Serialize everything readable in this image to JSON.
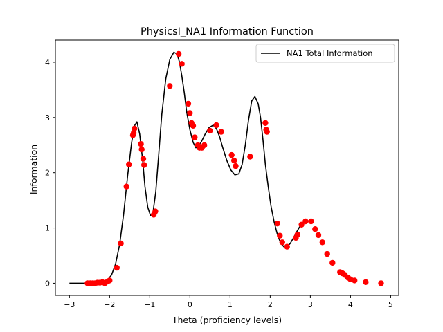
{
  "chart_data": {
    "type": "line",
    "title": "PhysicsI_NA1 Information Function",
    "xlabel": "Theta (proficiency levels)",
    "ylabel": "Information",
    "xlim": [
      -3.35,
      5.2
    ],
    "ylim": [
      -0.22,
      4.4
    ],
    "xticks": [
      -3,
      -2,
      -1,
      0,
      1,
      2,
      3,
      4,
      5
    ],
    "yticks": [
      0,
      1,
      2,
      3,
      4
    ],
    "grid": false,
    "legend_position": "upper right",
    "series": [
      {
        "name": "NA1 Total Information",
        "kind": "line",
        "color": "#000000",
        "x": [
          -3.0,
          -2.6,
          -2.4,
          -2.2,
          -2.05,
          -1.95,
          -1.85,
          -1.75,
          -1.65,
          -1.55,
          -1.45,
          -1.38,
          -1.32,
          -1.25,
          -1.18,
          -1.12,
          -1.05,
          -0.98,
          -0.92,
          -0.85,
          -0.78,
          -0.7,
          -0.6,
          -0.5,
          -0.4,
          -0.32,
          -0.26,
          -0.2,
          -0.14,
          -0.08,
          0.0,
          0.08,
          0.15,
          0.22,
          0.3,
          0.38,
          0.48,
          0.58,
          0.66,
          0.74,
          0.82,
          0.92,
          1.02,
          1.12,
          1.22,
          1.3,
          1.38,
          1.46,
          1.54,
          1.62,
          1.7,
          1.76,
          1.82,
          1.88,
          1.95,
          2.02,
          2.1,
          2.18,
          2.26,
          2.34,
          2.42,
          2.5,
          2.58,
          2.66,
          2.74,
          2.82,
          2.9,
          2.98,
          3.02
        ],
        "y": [
          0.0,
          0.0,
          0.01,
          0.02,
          0.06,
          0.15,
          0.35,
          0.7,
          1.25,
          1.95,
          2.55,
          2.85,
          2.92,
          2.7,
          2.25,
          1.75,
          1.38,
          1.22,
          1.28,
          1.65,
          2.3,
          3.05,
          3.7,
          4.05,
          4.18,
          4.15,
          4.0,
          3.75,
          3.45,
          3.1,
          2.78,
          2.55,
          2.45,
          2.48,
          2.58,
          2.7,
          2.82,
          2.86,
          2.8,
          2.65,
          2.45,
          2.22,
          2.05,
          1.96,
          1.98,
          2.15,
          2.5,
          2.95,
          3.3,
          3.38,
          3.25,
          3.0,
          2.6,
          2.15,
          1.75,
          1.4,
          1.1,
          0.88,
          0.73,
          0.66,
          0.66,
          0.72,
          0.82,
          0.93,
          1.03,
          1.1,
          1.13,
          1.12,
          1.1
        ]
      },
      {
        "kind": "scatter",
        "color": "#ff0000",
        "x": [
          -2.55,
          -2.48,
          -2.42,
          -2.36,
          -2.3,
          -2.24,
          -2.18,
          -2.12,
          -2.05,
          -2.0,
          -1.82,
          -1.72,
          -1.58,
          -1.52,
          -1.42,
          -1.4,
          -1.38,
          -1.22,
          -1.2,
          -1.16,
          -1.14,
          -0.9,
          -0.86,
          -0.5,
          -0.28,
          -0.2,
          -0.04,
          0.0,
          0.04,
          0.08,
          0.12,
          0.2,
          0.24,
          0.3,
          0.36,
          0.5,
          0.66,
          0.78,
          1.04,
          1.1,
          1.14,
          1.5,
          1.88,
          1.9,
          1.92,
          2.18,
          2.24,
          2.3,
          2.42,
          2.64,
          2.68,
          2.78,
          2.88,
          3.02,
          3.12,
          3.2,
          3.3,
          3.42,
          3.55,
          3.74,
          3.8,
          3.86,
          3.94,
          4.0,
          4.1,
          4.38,
          4.76
        ],
        "y": [
          0.0,
          0.0,
          0.0,
          0.0,
          0.01,
          0.01,
          0.02,
          0.0,
          0.03,
          0.05,
          0.28,
          0.72,
          1.75,
          2.15,
          2.68,
          2.72,
          2.8,
          2.52,
          2.42,
          2.25,
          2.14,
          1.24,
          1.3,
          3.57,
          4.15,
          3.97,
          3.25,
          3.08,
          2.9,
          2.85,
          2.64,
          2.5,
          2.45,
          2.45,
          2.5,
          2.76,
          2.86,
          2.74,
          2.32,
          2.22,
          2.12,
          2.29,
          2.9,
          2.78,
          2.74,
          1.08,
          0.86,
          0.74,
          0.66,
          0.82,
          0.88,
          1.06,
          1.12,
          1.12,
          0.98,
          0.87,
          0.74,
          0.53,
          0.37,
          0.2,
          0.18,
          0.15,
          0.1,
          0.07,
          0.05,
          0.02,
          0.0
        ]
      }
    ]
  }
}
